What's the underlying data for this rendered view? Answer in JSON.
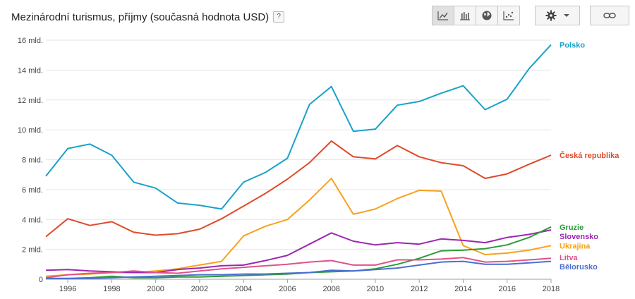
{
  "header": {
    "title": "Mezinárodní turismus, příjmy (současná hodnota USD)",
    "help_label": "?"
  },
  "toolbar": {
    "buttons": [
      {
        "icon": "line-chart-icon",
        "active": true
      },
      {
        "icon": "bar-chart-icon",
        "active": false
      },
      {
        "icon": "globe-map-icon",
        "active": false
      },
      {
        "icon": "scatter-chart-icon",
        "active": false
      }
    ],
    "settings_icon": "gear-icon",
    "dropdown_icon": "caret-down-icon",
    "link_icon": "link-icon"
  },
  "chart_data": {
    "type": "line",
    "title": "Mezinárodní turismus, příjmy (současná hodnota USD)",
    "xlabel": "",
    "ylabel": "",
    "x": [
      1995,
      1996,
      1997,
      1998,
      1999,
      2000,
      2001,
      2002,
      2003,
      2004,
      2005,
      2006,
      2007,
      2008,
      2009,
      2010,
      2011,
      2012,
      2013,
      2014,
      2015,
      2016,
      2017,
      2018
    ],
    "xlim": [
      1995,
      2018
    ],
    "ylim": [
      0,
      16
    ],
    "x_ticks": [
      "1996",
      "1998",
      "2000",
      "2002",
      "2004",
      "2006",
      "2008",
      "2010",
      "2012",
      "2014",
      "2016",
      "2018"
    ],
    "y_ticks": [
      "0",
      "2 mld.",
      "4 mld.",
      "6 mld.",
      "8 mld.",
      "10 mld.",
      "12 mld.",
      "14 mld.",
      "16 mld."
    ],
    "grid": true,
    "legend_position": "right, at line ends",
    "series": [
      {
        "name": "Polsko",
        "color": "#1aa1c9",
        "values": [
          6.9,
          8.75,
          9.05,
          8.3,
          6.5,
          6.1,
          5.1,
          4.95,
          4.7,
          6.5,
          7.15,
          8.1,
          11.7,
          12.9,
          9.9,
          10.05,
          11.65,
          11.9,
          12.45,
          12.95,
          11.35,
          12.05,
          14.1,
          15.7
        ]
      },
      {
        "name": "Česká republika",
        "color": "#e04a2a",
        "values": [
          2.85,
          4.05,
          3.6,
          3.85,
          3.15,
          2.95,
          3.05,
          3.35,
          4.05,
          4.9,
          5.75,
          6.7,
          7.8,
          9.25,
          8.2,
          8.05,
          8.95,
          8.2,
          7.8,
          7.6,
          6.75,
          7.05,
          7.7,
          8.3
        ]
      },
      {
        "name": "Ukrajina",
        "color": "#f7a21b",
        "values": [
          0.2,
          0.3,
          0.35,
          0.45,
          0.45,
          0.55,
          0.7,
          0.95,
          1.2,
          2.9,
          3.55,
          4.0,
          5.3,
          6.75,
          4.35,
          4.7,
          5.4,
          5.95,
          5.9,
          2.25,
          1.65,
          1.75,
          1.95,
          2.25
        ]
      },
      {
        "name": "Slovensko",
        "color": "#9c27b0",
        "values": [
          0.6,
          0.65,
          0.55,
          0.5,
          0.45,
          0.45,
          0.65,
          0.75,
          0.9,
          0.95,
          1.25,
          1.6,
          2.35,
          3.1,
          2.55,
          2.3,
          2.45,
          2.35,
          2.7,
          2.6,
          2.45,
          2.8,
          3.0,
          3.3
        ]
      },
      {
        "name": "Gruzie",
        "color": "#2e9b3a",
        "values": [
          0.05,
          0.05,
          0.1,
          0.2,
          0.1,
          0.1,
          0.15,
          0.15,
          0.2,
          0.25,
          0.3,
          0.35,
          0.45,
          0.5,
          0.55,
          0.7,
          1.0,
          1.4,
          1.9,
          1.95,
          2.05,
          2.3,
          2.8,
          3.5
        ]
      },
      {
        "name": "Litva",
        "color": "#e0528a",
        "values": [
          0.1,
          0.3,
          0.4,
          0.45,
          0.55,
          0.45,
          0.4,
          0.55,
          0.7,
          0.8,
          0.9,
          1.0,
          1.15,
          1.25,
          0.95,
          0.95,
          1.3,
          1.3,
          1.35,
          1.45,
          1.15,
          1.2,
          1.3,
          1.4
        ]
      },
      {
        "name": "Bělorusko",
        "color": "#4a6fd0",
        "values": [
          0.05,
          0.05,
          0.05,
          0.1,
          0.15,
          0.2,
          0.25,
          0.3,
          0.3,
          0.35,
          0.35,
          0.4,
          0.45,
          0.6,
          0.55,
          0.65,
          0.75,
          0.95,
          1.15,
          1.2,
          1.0,
          1.0,
          1.1,
          1.2
        ]
      }
    ]
  }
}
